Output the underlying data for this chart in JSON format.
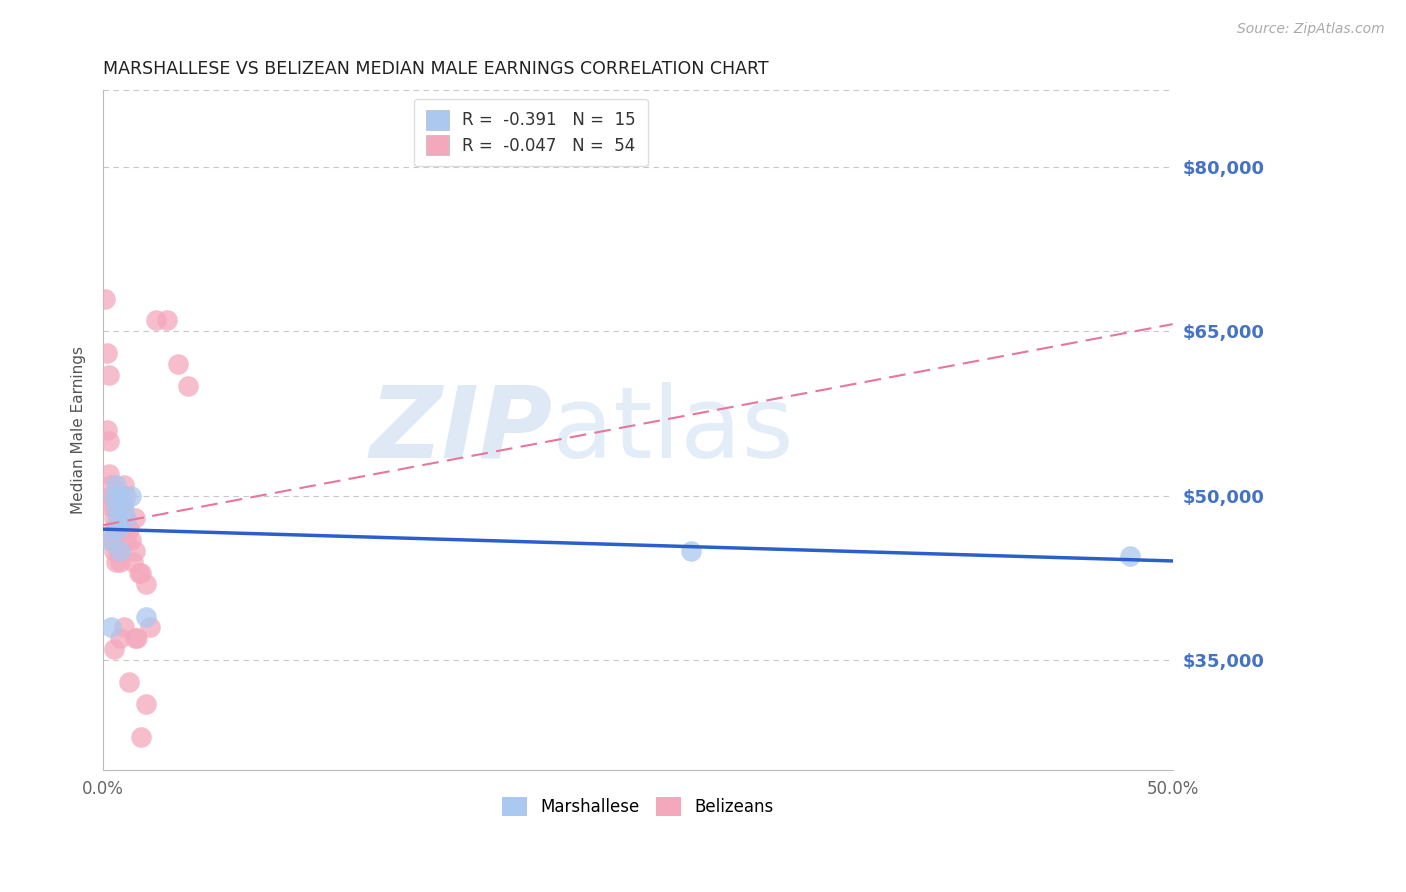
{
  "title": "MARSHALLESE VS BELIZEAN MEDIAN MALE EARNINGS CORRELATION CHART",
  "source": "Source: ZipAtlas.com",
  "ylabel": "Median Male Earnings",
  "xlim": [
    0.0,
    0.5
  ],
  "ylim": [
    25000,
    87000
  ],
  "yticks": [
    35000,
    50000,
    65000,
    80000
  ],
  "ytick_labels": [
    "$35,000",
    "$50,000",
    "$65,000",
    "$80,000"
  ],
  "xticks": [
    0.0,
    0.1,
    0.2,
    0.3,
    0.4,
    0.5
  ],
  "xtick_labels": [
    "0.0%",
    "",
    "",
    "",
    "",
    "50.0%"
  ],
  "watermark_zip": "ZIP",
  "watermark_atlas": "atlas",
  "legend_line1": "R =  -0.391   N =  15",
  "legend_line2": "R =  -0.047   N =  54",
  "marshallese_x": [
    0.003,
    0.004,
    0.005,
    0.006,
    0.006,
    0.007,
    0.007,
    0.008,
    0.009,
    0.01,
    0.011,
    0.013,
    0.02,
    0.275,
    0.48
  ],
  "marshallese_y": [
    46000,
    38000,
    50000,
    51000,
    49000,
    48000,
    47000,
    45000,
    50000,
    49000,
    48000,
    50000,
    39000,
    45000,
    44500
  ],
  "belizean_x": [
    0.001,
    0.002,
    0.002,
    0.003,
    0.003,
    0.003,
    0.004,
    0.004,
    0.004,
    0.004,
    0.005,
    0.005,
    0.005,
    0.005,
    0.005,
    0.005,
    0.006,
    0.006,
    0.006,
    0.006,
    0.007,
    0.007,
    0.007,
    0.008,
    0.008,
    0.008,
    0.008,
    0.009,
    0.009,
    0.01,
    0.01,
    0.011,
    0.011,
    0.012,
    0.013,
    0.014,
    0.015,
    0.015,
    0.016,
    0.017,
    0.018,
    0.02,
    0.022,
    0.025,
    0.03,
    0.035,
    0.04,
    0.015,
    0.008,
    0.012,
    0.01,
    0.005,
    0.02,
    0.018
  ],
  "belizean_y": [
    68000,
    63000,
    56000,
    61000,
    55000,
    52000,
    51000,
    50000,
    49000,
    46000,
    50000,
    49000,
    48000,
    47000,
    46000,
    45000,
    50000,
    49000,
    47000,
    44000,
    50000,
    48000,
    45000,
    50000,
    49000,
    47000,
    44000,
    49000,
    47000,
    51000,
    48000,
    50000,
    46000,
    47000,
    46000,
    44000,
    48000,
    45000,
    37000,
    43000,
    43000,
    42000,
    38000,
    66000,
    66000,
    62000,
    60000,
    37000,
    37000,
    33000,
    38000,
    36000,
    31000,
    28000
  ],
  "blue_line_color": "#2b5fcc",
  "pink_line_color": "#e8769a",
  "blue_scatter_color": "#aac8f0",
  "pink_scatter_color": "#f4a8bc",
  "background_color": "#ffffff",
  "grid_color": "#c8c8c8",
  "title_color": "#222222",
  "ylabel_color": "#555555",
  "right_tick_color": "#4472c4",
  "xtick_color": "#666666"
}
